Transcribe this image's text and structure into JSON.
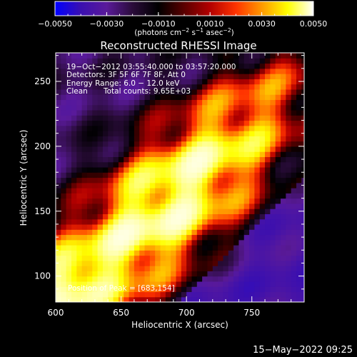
{
  "chart_data": {
    "type": "heatmap",
    "title": "Reconstructed RHESSI Image",
    "xlabel": "Heliocentric X (arcsec)",
    "ylabel": "Heliocentric Y (arcsec)",
    "xlim": [
      600,
      790
    ],
    "ylim": [
      80,
      272
    ],
    "x_ticks": [
      600,
      650,
      700,
      750
    ],
    "y_ticks": [
      100,
      150,
      200,
      250
    ],
    "colorbar": {
      "min": -0.005,
      "max": 0.005,
      "ticks": [
        -0.005,
        -0.003,
        -0.001,
        0.001,
        0.003,
        0.005
      ],
      "tick_labels": [
        "−0.0050",
        "−0.0030",
        "−0.0010",
        "0.0010",
        "0.0030",
        "0.0050"
      ],
      "unit_parts": [
        "(photons cm",
        "−2",
        " s",
        "−1",
        " asec",
        "−2",
        ")"
      ]
    },
    "annotations": {
      "time_range": "19−Oct−2012 03:55:40.000 to 03:57:20.000",
      "detectors": "Detectors: 3F 5F 6F 7F 8F, Att 0",
      "energy_range": "Energy Range: 6.0 − 12.0 keV",
      "method": "Clean",
      "total_counts": "Total counts: 9.65E+03",
      "peak_position": "Position of Peak = [683,154]"
    },
    "peak": {
      "x": 683,
      "y": 154
    },
    "footer_date": "15−May−2022 09:25",
    "colormap": [
      "#0000ff",
      "#3a0fb0",
      "#5a1a9a",
      "#2a0c3a",
      "#000000",
      "#5a0000",
      "#b30000",
      "#ff3300",
      "#ff9900",
      "#ffff00",
      "#ffffff"
    ]
  }
}
